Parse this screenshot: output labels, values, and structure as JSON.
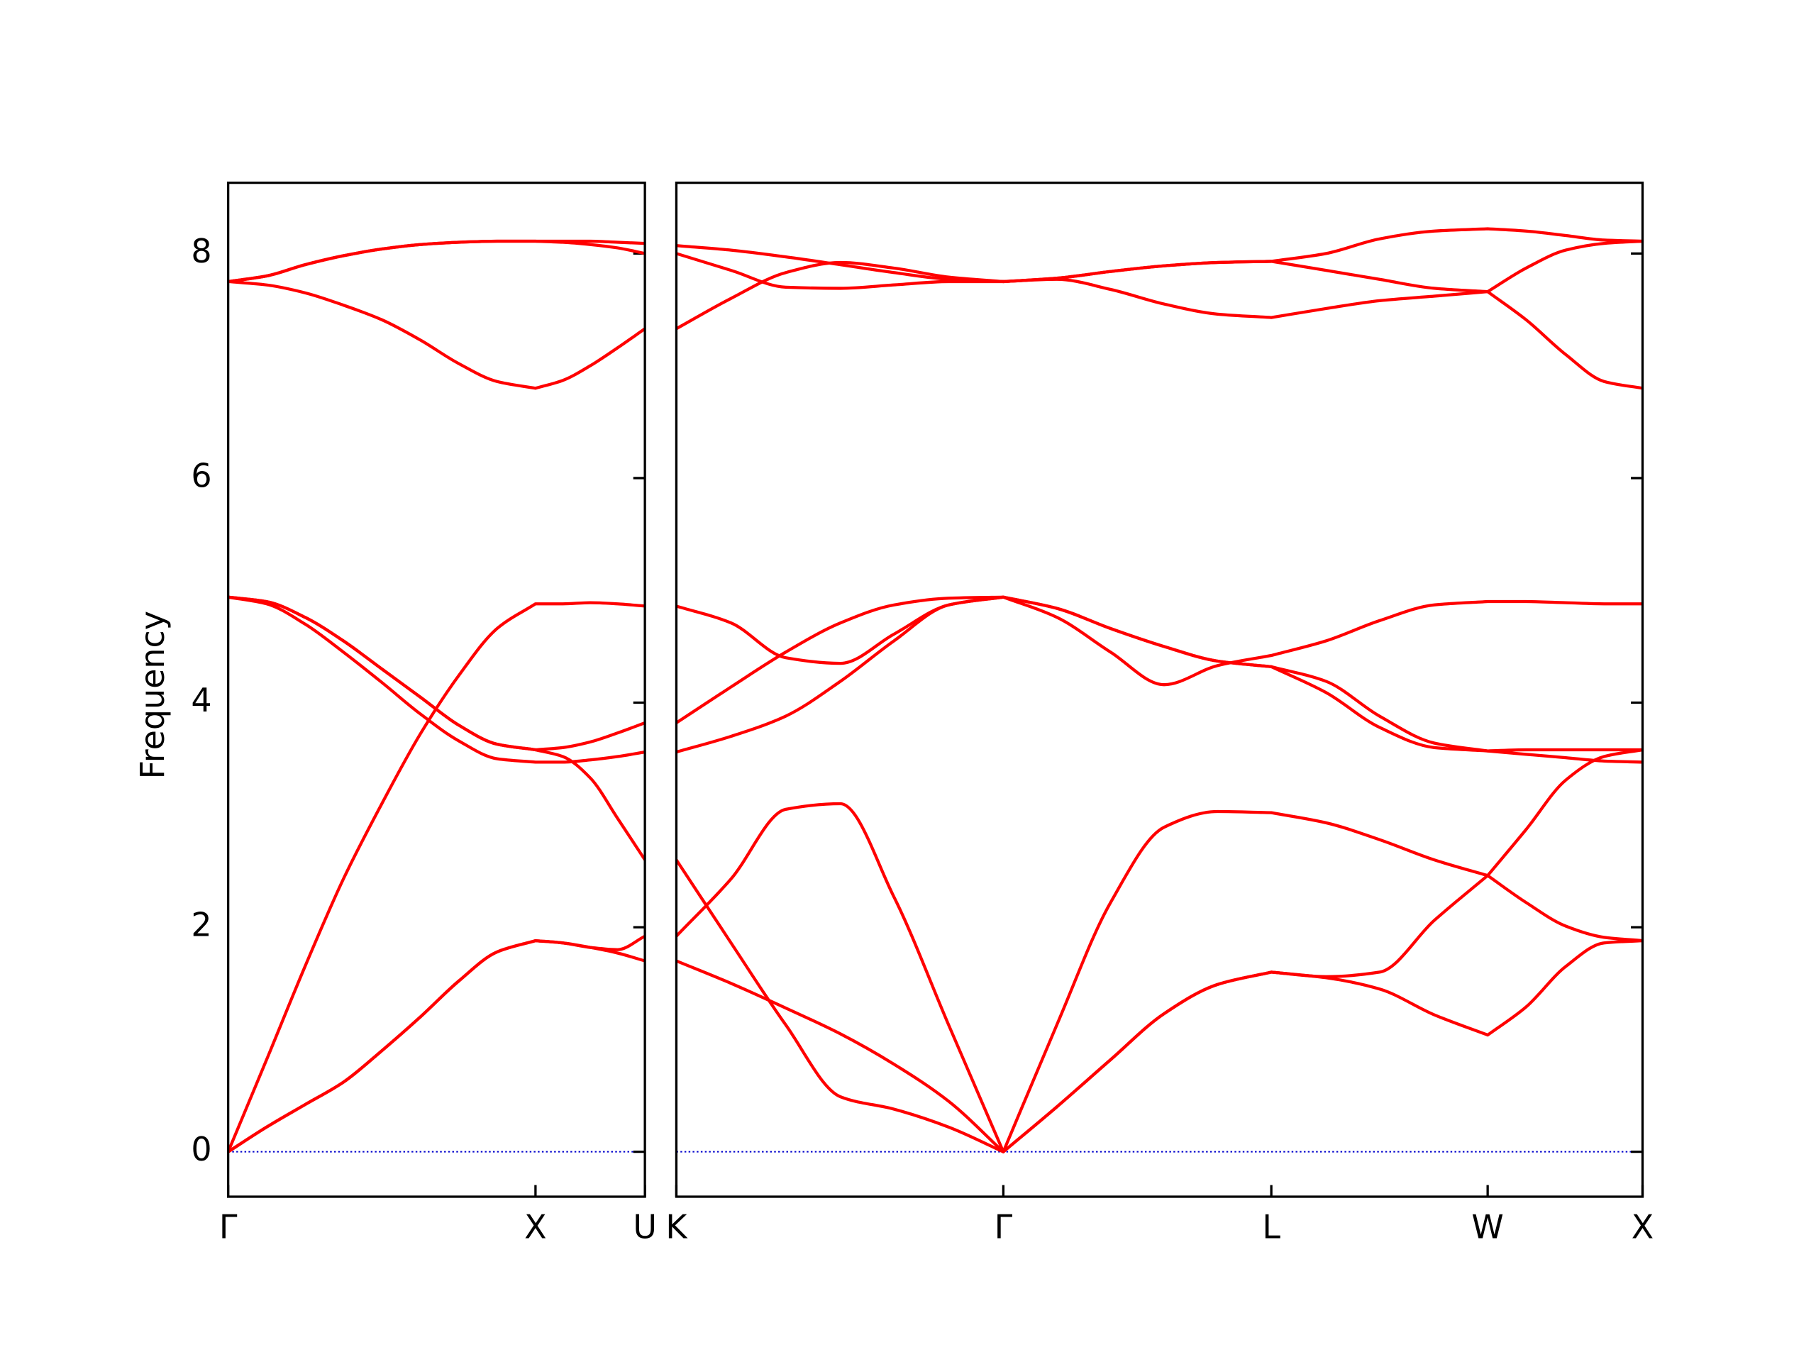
{
  "chart_data": [
    {
      "type": "line",
      "ylabel": "Frequency",
      "x": [
        0,
        0.125,
        0.25,
        0.375,
        0.5,
        0.625,
        0.75,
        0.875,
        1,
        1.089,
        1.178,
        1.267,
        1.356
      ],
      "xlim": [
        0,
        1.356
      ],
      "xticks": [
        {
          "value": 0,
          "label": "Γ"
        },
        {
          "value": 1,
          "label": "X"
        },
        {
          "value": 1.356,
          "label": "U"
        }
      ],
      "ylim": [
        -0.4,
        8.63
      ],
      "yticks": [
        0,
        2,
        4,
        6,
        8
      ],
      "ytick_labels": true,
      "hline": {
        "y": 0,
        "color": "#0000cc"
      },
      "series": [
        {
          "color": "#ff0000",
          "values": [
            0,
            0.22,
            0.42,
            0.62,
            0.9,
            1.2,
            1.52,
            1.78,
            1.88,
            1.86,
            1.82,
            1.77,
            1.7
          ]
        },
        {
          "color": "#ff0000",
          "values": [
            0,
            0.22,
            0.42,
            0.62,
            0.9,
            1.2,
            1.52,
            1.78,
            1.88,
            1.86,
            1.82,
            1.8,
            1.92
          ]
        },
        {
          "color": "#ff0000",
          "values": [
            0,
            0.82,
            1.65,
            2.43,
            3.1,
            3.72,
            4.24,
            4.66,
            4.88,
            4.88,
            4.89,
            4.88,
            4.86
          ]
        },
        {
          "color": "#ff0000",
          "values": [
            4.94,
            4.88,
            4.7,
            4.45,
            4.18,
            3.9,
            3.66,
            3.5,
            3.47,
            3.47,
            3.49,
            3.52,
            3.56
          ]
        },
        {
          "color": "#ff0000",
          "values": [
            4.94,
            4.9,
            4.76,
            4.55,
            4.3,
            4.05,
            3.8,
            3.63,
            3.58,
            3.6,
            3.65,
            3.73,
            3.82
          ]
        },
        {
          "color": "#ff0000",
          "values": [
            4.94,
            4.9,
            4.76,
            4.55,
            4.3,
            4.05,
            3.8,
            3.63,
            3.58,
            3.52,
            3.33,
            2.97,
            2.6
          ]
        },
        {
          "color": "#ff0000",
          "values": [
            7.75,
            7.72,
            7.65,
            7.54,
            7.41,
            7.23,
            7.02,
            6.86,
            6.8,
            6.87,
            7.0,
            7.16,
            7.33
          ]
        },
        {
          "color": "#ff0000",
          "values": [
            7.75,
            7.8,
            7.9,
            7.98,
            8.04,
            8.08,
            8.1,
            8.11,
            8.11,
            8.11,
            8.11,
            8.1,
            8.09
          ]
        },
        {
          "color": "#ff0000",
          "values": [
            7.75,
            7.8,
            7.9,
            7.98,
            8.04,
            8.08,
            8.1,
            8.11,
            8.11,
            8.1,
            8.08,
            8.05,
            8.0
          ]
        }
      ]
    },
    {
      "type": "line",
      "x": [
        0,
        0.178,
        0.356,
        0.534,
        0.708,
        0.886,
        1.064,
        1.238,
        1.413,
        1.587,
        1.761,
        1.936,
        2.114,
        2.288,
        2.466,
        2.64,
        2.765,
        2.894,
        3.019,
        3.144
      ],
      "xlim": [
        0,
        3.144
      ],
      "xticks": [
        {
          "value": 0,
          "label": "K"
        },
        {
          "value": 1.064,
          "label": "Γ"
        },
        {
          "value": 1.936,
          "label": "L"
        },
        {
          "value": 2.64,
          "label": "W"
        },
        {
          "value": 3.144,
          "label": "X"
        }
      ],
      "ylim": [
        -0.4,
        8.63
      ],
      "yticks": [
        0,
        2,
        4,
        6,
        8
      ],
      "ytick_labels": false,
      "hline": {
        "y": 0,
        "color": "#0000cc"
      },
      "series": [
        {
          "color": "#ff0000",
          "values": [
            1.7,
            1.5,
            1.28,
            1.05,
            0.78,
            0.45,
            0,
            0.4,
            0.82,
            1.23,
            1.49,
            1.6,
            1.55,
            1.45,
            1.22,
            1.04,
            1.29,
            1.65,
            1.86,
            1.88
          ]
        },
        {
          "color": "#ff0000",
          "values": [
            2.6,
            1.86,
            1.13,
            0.49,
            0.38,
            0.22,
            0,
            0.4,
            0.82,
            1.23,
            1.49,
            1.6,
            1.56,
            1.6,
            2.06,
            2.46,
            2.87,
            3.31,
            3.52,
            3.58
          ]
        },
        {
          "color": "#ff0000",
          "values": [
            1.92,
            2.43,
            3.05,
            3.1,
            2.27,
            1.13,
            0,
            1.13,
            2.22,
            2.89,
            3.03,
            3.02,
            2.93,
            2.78,
            2.6,
            2.46,
            2.22,
            2.01,
            1.91,
            1.88
          ]
        },
        {
          "color": "#ff0000",
          "values": [
            3.56,
            3.7,
            3.88,
            4.19,
            4.55,
            4.87,
            4.94,
            4.76,
            4.45,
            4.16,
            4.33,
            4.42,
            4.55,
            4.73,
            4.87,
            4.9,
            4.9,
            4.89,
            4.88,
            4.88
          ]
        },
        {
          "color": "#ff0000",
          "values": [
            3.82,
            4.14,
            4.45,
            4.71,
            4.87,
            4.93,
            4.94,
            4.84,
            4.66,
            4.5,
            4.37,
            4.32,
            4.19,
            3.88,
            3.64,
            3.57,
            3.58,
            3.58,
            3.58,
            3.58
          ]
        },
        {
          "color": "#ff0000",
          "values": [
            4.86,
            4.71,
            4.4,
            4.35,
            4.61,
            4.87,
            4.94,
            4.84,
            4.66,
            4.5,
            4.37,
            4.32,
            4.09,
            3.78,
            3.6,
            3.57,
            3.54,
            3.51,
            3.48,
            3.47
          ]
        },
        {
          "color": "#ff0000",
          "values": [
            8.07,
            8.03,
            7.97,
            7.9,
            7.83,
            7.77,
            7.75,
            7.78,
            7.84,
            7.89,
            7.92,
            7.93,
            8.0,
            8.13,
            8.2,
            8.22,
            8.2,
            8.16,
            8.12,
            8.11
          ]
        },
        {
          "color": "#ff0000",
          "values": [
            8.0,
            7.85,
            7.7,
            7.69,
            7.72,
            7.75,
            7.75,
            7.78,
            7.84,
            7.89,
            7.92,
            7.93,
            7.85,
            7.77,
            7.69,
            7.66,
            7.41,
            7.1,
            6.86,
            6.8
          ]
        },
        {
          "color": "#ff0000",
          "values": [
            7.33,
            7.6,
            7.83,
            7.92,
            7.87,
            7.79,
            7.75,
            7.77,
            7.68,
            7.55,
            7.46,
            7.43,
            7.51,
            7.58,
            7.62,
            7.66,
            7.87,
            8.03,
            8.09,
            8.11
          ]
        }
      ]
    }
  ]
}
